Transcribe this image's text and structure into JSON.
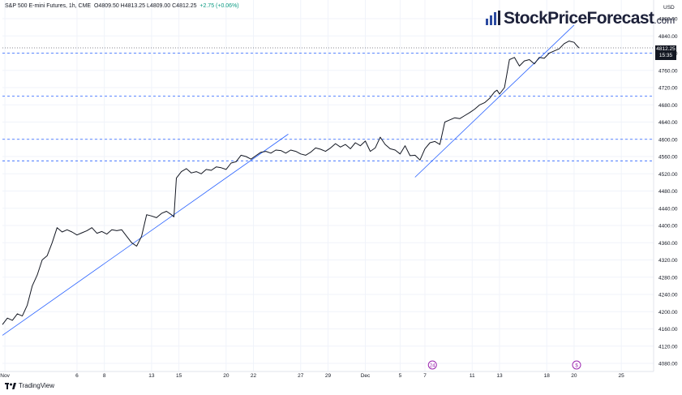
{
  "header": {
    "symbol": "S&P 500 E-mini Futures, 1h, CME",
    "ohlc": "O4809.50  H4813.25  L4809.00  C4812.25",
    "change": "+2.75 (+0.06%)"
  },
  "logo": {
    "name": "StockPriceForecast",
    "domain": ".com"
  },
  "footer": {
    "brand": "TradingView"
  },
  "colors": {
    "price": "#131722",
    "trendline": "#2962ff",
    "hline": "#2962ff",
    "grid": "#f0f3fa"
  },
  "chart_data": {
    "type": "line",
    "title": "",
    "xlabel": "",
    "ylabel": "",
    "currency_label": "USD",
    "ylim": [
      4050,
      4885
    ],
    "y_ticks": [
      4080,
      4120,
      4160,
      4200,
      4240,
      4280,
      4320,
      4360,
      4400,
      4440,
      4480,
      4520,
      4560,
      4600,
      4640,
      4680,
      4720,
      4760,
      4800,
      4840,
      4880
    ],
    "y_tick_labels": [
      "4080.00",
      "4120.00",
      "4160.00",
      "4200.00",
      "4240.00",
      "4280.00",
      "4320.00",
      "4360.00",
      "4400.00",
      "4440.00",
      "4480.00",
      "4520.00",
      "4560.00",
      "4600.00",
      "4640.00",
      "4680.00",
      "4720.00",
      "4760.00",
      "4800.00",
      "4840.00",
      "4880.00"
    ],
    "x_ticks": [
      "Nov",
      "6",
      "8",
      "13",
      "15",
      "20",
      "22",
      "27",
      "29",
      "Dec",
      "5",
      "7",
      "11",
      "13",
      "18",
      "20",
      "25"
    ],
    "x_tick_index": [
      1,
      30,
      41,
      60,
      71,
      90,
      101,
      120,
      131,
      146,
      160,
      170,
      189,
      200,
      219,
      230,
      249
    ],
    "x_range": [
      0,
      262
    ],
    "last_price": {
      "value": 4812.25,
      "label": "4812.25",
      "countdown": "15:35"
    },
    "event_markers": [
      {
        "index": 173,
        "symbol": "24"
      },
      {
        "index": 231,
        "symbol": "$"
      }
    ],
    "horizontal_levels": [
      4800,
      4700,
      4600,
      4550
    ],
    "trendlines": [
      {
        "from": [
          0,
          4145
        ],
        "to": [
          115,
          4612
        ]
      },
      {
        "from": [
          166,
          4512
        ],
        "to": [
          230,
          4865
        ]
      }
    ],
    "series": [
      {
        "x": [
          0,
          2,
          4,
          6,
          8,
          10,
          12,
          14,
          16,
          18,
          20,
          22,
          24,
          26,
          28,
          30,
          32,
          34,
          36,
          38,
          40,
          42,
          44,
          46,
          48,
          50,
          52,
          54,
          56,
          58,
          60,
          62,
          64,
          66,
          68,
          69,
          70,
          72,
          74,
          76,
          78,
          80,
          82,
          84,
          86,
          88,
          90,
          92,
          94,
          96,
          98,
          100,
          102,
          104,
          106,
          108,
          110,
          112,
          114,
          116,
          118,
          120,
          122,
          124,
          126,
          128,
          130,
          132,
          134,
          136,
          138,
          140,
          142,
          144,
          146,
          148,
          150,
          152,
          154,
          156,
          158,
          160,
          162,
          164,
          166,
          168,
          170,
          172,
          174,
          176,
          178,
          180,
          182,
          184,
          186,
          188,
          190,
          192,
          194,
          196,
          198,
          199,
          200,
          202,
          204,
          206,
          208,
          210,
          212,
          214,
          216,
          218,
          220,
          222,
          224,
          226,
          228,
          230,
          231,
          232
        ],
        "values": [
          4170,
          4185,
          4180,
          4195,
          4190,
          4215,
          4260,
          4285,
          4320,
          4330,
          4360,
          4395,
          4385,
          4390,
          4385,
          4378,
          4383,
          4388,
          4395,
          4382,
          4386,
          4380,
          4390,
          4388,
          4390,
          4375,
          4360,
          4352,
          4375,
          4425,
          4422,
          4418,
          4428,
          4433,
          4425,
          4420,
          4510,
          4525,
          4532,
          4522,
          4525,
          4520,
          4530,
          4528,
          4536,
          4534,
          4530,
          4545,
          4548,
          4563,
          4560,
          4554,
          4562,
          4570,
          4572,
          4568,
          4575,
          4574,
          4568,
          4575,
          4572,
          4566,
          4563,
          4570,
          4580,
          4577,
          4572,
          4580,
          4590,
          4582,
          4588,
          4578,
          4592,
          4585,
          4596,
          4572,
          4580,
          4605,
          4588,
          4578,
          4575,
          4566,
          4585,
          4562,
          4563,
          4552,
          4578,
          4592,
          4595,
          4588,
          4640,
          4645,
          4650,
          4648,
          4655,
          4662,
          4670,
          4680,
          4685,
          4695,
          4710,
          4714,
          4705,
          4720,
          4785,
          4790,
          4770,
          4782,
          4785,
          4775,
          4790,
          4788,
          4800,
          4805,
          4810,
          4822,
          4828,
          4825,
          4818,
          4812
        ]
      }
    ]
  }
}
